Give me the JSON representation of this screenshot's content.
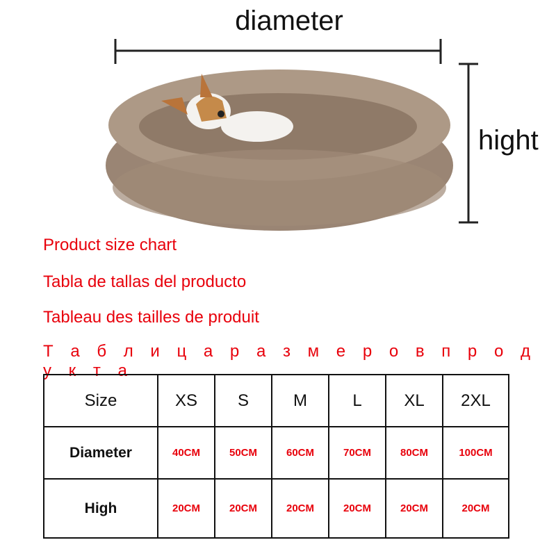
{
  "dimension_labels": {
    "diameter": "diameter",
    "height": "hight"
  },
  "titles": [
    "Product size chart",
    "Tabla de tallas del producto",
    "Tableau des tailles de produit",
    "Т а б л и ц а  р а з м е р о в  п р о д у к т а"
  ],
  "size_table": {
    "header": [
      "Size",
      "XS",
      "S",
      "M",
      "L",
      "XL",
      "2XL"
    ],
    "rows": [
      {
        "label": "Diameter",
        "values": [
          "40CM",
          "50CM",
          "60CM",
          "70CM",
          "80CM",
          "100CM"
        ]
      },
      {
        "label": "High",
        "values": [
          "20CM",
          "20CM",
          "20CM",
          "20CM",
          "20CM",
          "20CM"
        ]
      }
    ]
  },
  "colors": {
    "title_red": "#e8000b",
    "bed": "#a08a78"
  }
}
